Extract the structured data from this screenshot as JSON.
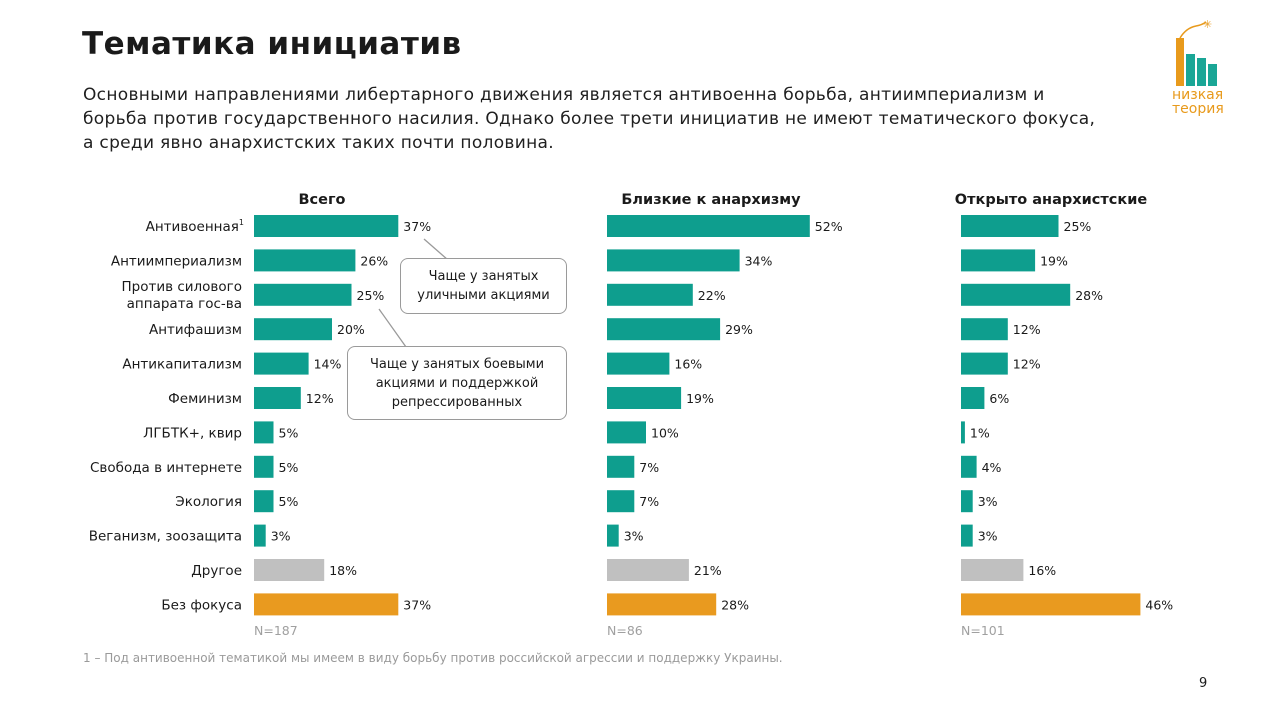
{
  "slide": {
    "title": "Тематика инициатив",
    "subtitle": "Основными направлениями либертарного движения является антивоенна борьба, антиимпериализм и борьба против государственного насилия. Однако более трети инициатив не имеют тематического фокуса, а среди явно анархистских таких почти половина.",
    "footnote": "1 – Под антивоенной тематикой мы имеем в виду борьбу против российской агрессии и поддержку Украины.",
    "page_number": "9"
  },
  "logo": {
    "line1": "низкая",
    "line2": "теория"
  },
  "callouts": {
    "street": "Чаще у занятых уличными акциями",
    "combat": "Чаще у занятых боевыми акциями и поддержкой репрессированных"
  },
  "colors": {
    "teal": "#0e9e8e",
    "gray": "#c0c0c0",
    "orange": "#e99a1f",
    "logo_teal": "#1aa696",
    "logo_orange": "#e89a1c"
  },
  "chart_data": {
    "type": "bar",
    "orientation": "horizontal",
    "categories": [
      "Антивоенная",
      "Антиимпериализм",
      "Против силового аппарата гос-ва",
      "Антифашизм",
      "Антикапитализм",
      "Феминизм",
      "ЛГБТК+, квир",
      "Свобода в интернете",
      "Экология",
      "Веганизм, зоозащита",
      "Другое",
      "Без фокуса"
    ],
    "category_label_lines": [
      [
        "Антивоенная"
      ],
      [
        "Антиимпериализм"
      ],
      [
        "Против силового",
        "аппарата гос-ва"
      ],
      [
        "Антифашизм"
      ],
      [
        "Антикапитализм"
      ],
      [
        "Феминизм"
      ],
      [
        "ЛГБТК+, квир"
      ],
      [
        "Свобода в интернете"
      ],
      [
        "Экология"
      ],
      [
        "Веганизм, зоозащита"
      ],
      [
        "Другое"
      ],
      [
        "Без фокуса"
      ]
    ],
    "footnote_marker": "1",
    "bar_colors": [
      "teal",
      "teal",
      "teal",
      "teal",
      "teal",
      "teal",
      "teal",
      "teal",
      "teal",
      "teal",
      "gray",
      "orange"
    ],
    "unit": "%",
    "series": [
      {
        "name": "Всего",
        "n": "N=187",
        "values": [
          37,
          26,
          25,
          20,
          14,
          12,
          5,
          5,
          5,
          3,
          18,
          37
        ]
      },
      {
        "name": "Близкие к анархизму",
        "n": "N=86",
        "values": [
          52,
          34,
          22,
          29,
          16,
          19,
          10,
          7,
          7,
          3,
          21,
          28
        ]
      },
      {
        "name": "Открыто анархистские",
        "n": "N=101",
        "values": [
          25,
          19,
          28,
          12,
          12,
          6,
          1,
          4,
          3,
          3,
          16,
          46
        ]
      }
    ]
  }
}
